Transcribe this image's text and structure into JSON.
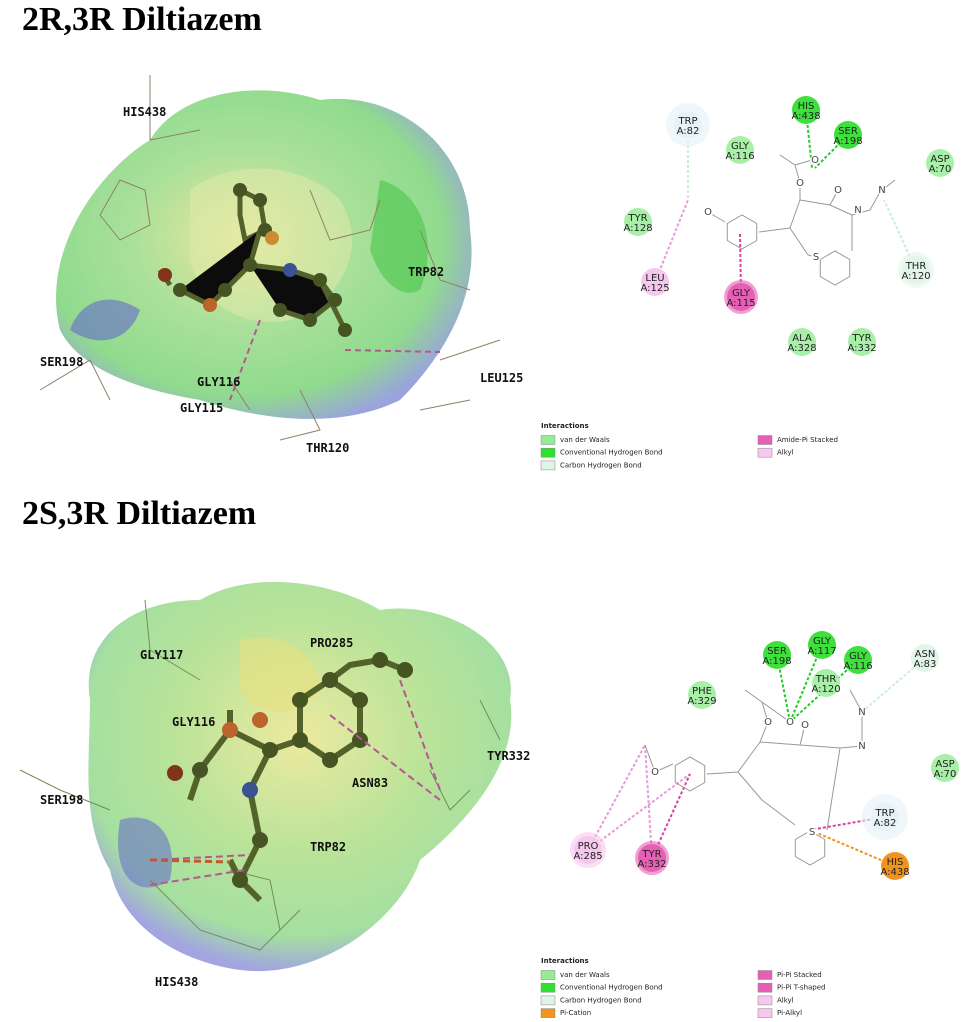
{
  "panels": [
    {
      "title": "2R,3R Diltiazem",
      "structure_labels": [
        "HIS438",
        "TRP82",
        "SER198",
        "GLY116",
        "GLY115",
        "LEU125",
        "THR120"
      ],
      "residues": [
        {
          "name": "TRP",
          "id": "A:82",
          "color": "#e6f2f6"
        },
        {
          "name": "GLY",
          "id": "A:116",
          "color": "#a8f0a8"
        },
        {
          "name": "HIS",
          "id": "A:438",
          "color": "#3ee03e"
        },
        {
          "name": "SER",
          "id": "A:198",
          "color": "#3ee03e"
        },
        {
          "name": "ASP",
          "id": "A:70",
          "color": "#a8f0a8"
        },
        {
          "name": "TYR",
          "id": "A:128",
          "color": "#a8f0a8"
        },
        {
          "name": "THR",
          "id": "A:120",
          "color": "#e2f5ea"
        },
        {
          "name": "LEU",
          "id": "A:125",
          "color": "#f6c8ee"
        },
        {
          "name": "GLY",
          "id": "A:115",
          "color": "#e65fb4"
        },
        {
          "name": "ALA",
          "id": "A:328",
          "color": "#a8f0a8"
        },
        {
          "name": "TYR",
          "id": "A:332",
          "color": "#a8f0a8"
        }
      ],
      "atoms": [
        "O",
        "O",
        "O",
        "O",
        "N",
        "N",
        "S"
      ],
      "legend": {
        "title": "Interactions",
        "items": [
          {
            "label": "van der Waals",
            "color": "#96ec96"
          },
          {
            "label": "Conventional Hydrogen Bond",
            "color": "#2fe02f"
          },
          {
            "label": "Carbon Hydrogen Bond",
            "color": "#dff5e6"
          },
          {
            "label": "Amide-Pi Stacked",
            "color": "#e65fb4"
          },
          {
            "label": "Alkyl",
            "color": "#f6c8ee"
          }
        ]
      }
    },
    {
      "title": "2S,3R Diltiazem",
      "structure_labels": [
        "GLY117",
        "PRO285",
        "GLY116",
        "TYR332",
        "ASN83",
        "SER198",
        "TRP82",
        "HIS438"
      ],
      "residues": [
        {
          "name": "SER",
          "id": "A:198",
          "color": "#3ee03e"
        },
        {
          "name": "GLY",
          "id": "A:117",
          "color": "#3ee03e"
        },
        {
          "name": "GLY",
          "id": "A:116",
          "color": "#3ee03e"
        },
        {
          "name": "THR",
          "id": "A:120",
          "color": "#a8f0a8"
        },
        {
          "name": "ASN",
          "id": "A:83",
          "color": "#e2f5ea"
        },
        {
          "name": "PHE",
          "id": "A:329",
          "color": "#a8f0a8"
        },
        {
          "name": "ASP",
          "id": "A:70",
          "color": "#a8f0a8"
        },
        {
          "name": "TRP",
          "id": "A:82",
          "color": "#e6f2f6"
        },
        {
          "name": "PRO",
          "id": "A:285",
          "color": "#f6c8ee"
        },
        {
          "name": "TYR",
          "id": "A:332",
          "color": "#e65fb4"
        },
        {
          "name": "HIS",
          "id": "A:438",
          "color": "#f0941e"
        }
      ],
      "atoms": [
        "O",
        "O",
        "O",
        "O",
        "N",
        "N",
        "S"
      ],
      "legend": {
        "title": "Interactions",
        "items": [
          {
            "label": "van der Waals",
            "color": "#96ec96"
          },
          {
            "label": "Conventional Hydrogen Bond",
            "color": "#2fe02f"
          },
          {
            "label": "Carbon Hydrogen Bond",
            "color": "#dff5e6"
          },
          {
            "label": "Pi-Cation",
            "color": "#f0941e"
          },
          {
            "label": "Pi-Pi Stacked",
            "color": "#e65fb4"
          },
          {
            "label": "Pi-Pi T-shaped",
            "color": "#e65fb4"
          },
          {
            "label": "Alkyl",
            "color": "#f6c8ee"
          },
          {
            "label": "Pi-Alkyl",
            "color": "#f6c8ee"
          }
        ]
      }
    }
  ]
}
